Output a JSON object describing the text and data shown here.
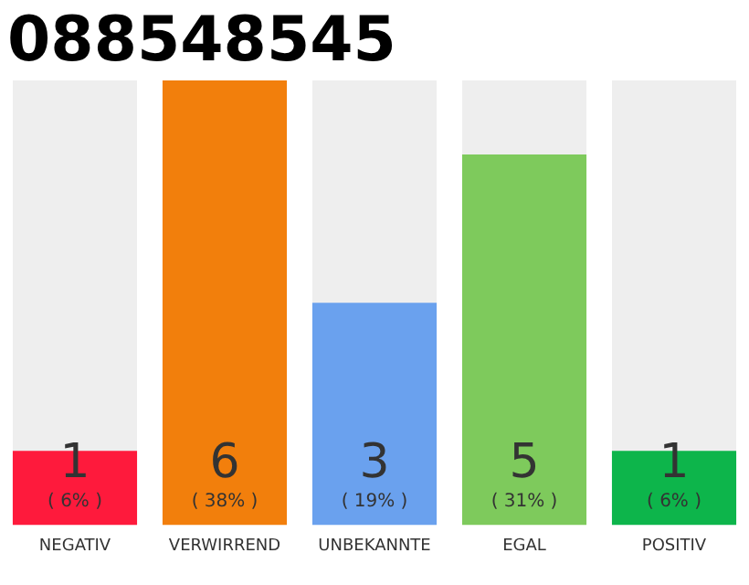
{
  "chart_data": {
    "type": "bar",
    "title": "088548545",
    "categories": [
      "NEGATIV",
      "VERWIRREND",
      "UNBEKANNTE",
      "EGAL",
      "POSITIV"
    ],
    "values": [
      1,
      6,
      3,
      5,
      1
    ],
    "colors": [
      "#fe1a3c",
      "#f27f0c",
      "#6aa1ee",
      "#7eca5c",
      "#0db54b"
    ],
    "data_labels": true,
    "annotations": [
      "( 6% )",
      "( 38% )",
      "( 19% )",
      "( 31% )",
      "( 6% )"
    ],
    "grid": false,
    "legend": false
  }
}
